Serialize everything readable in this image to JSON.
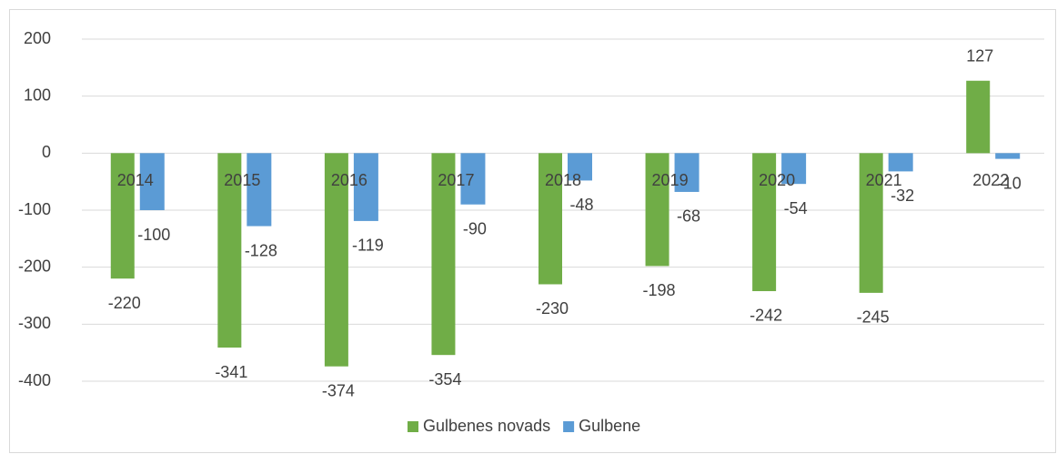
{
  "chart_data": {
    "type": "bar",
    "categories": [
      "2014",
      "2015",
      "2016",
      "2017",
      "2018",
      "2019",
      "2020",
      "2021",
      "2022"
    ],
    "series": [
      {
        "name": "Gulbenes novads",
        "color": "#70ad47",
        "values": [
          -220,
          -341,
          -374,
          -354,
          -230,
          -198,
          -242,
          -245,
          127
        ]
      },
      {
        "name": "Gulbene",
        "color": "#5b9bd5",
        "values": [
          -100,
          -128,
          -119,
          -90,
          -48,
          -68,
          -54,
          -32,
          -10
        ]
      }
    ],
    "ylim": [
      -400,
      200
    ],
    "yticks": [
      200,
      100,
      0,
      -100,
      -200,
      -300,
      -400
    ],
    "grid": true,
    "legend": "bottom"
  }
}
